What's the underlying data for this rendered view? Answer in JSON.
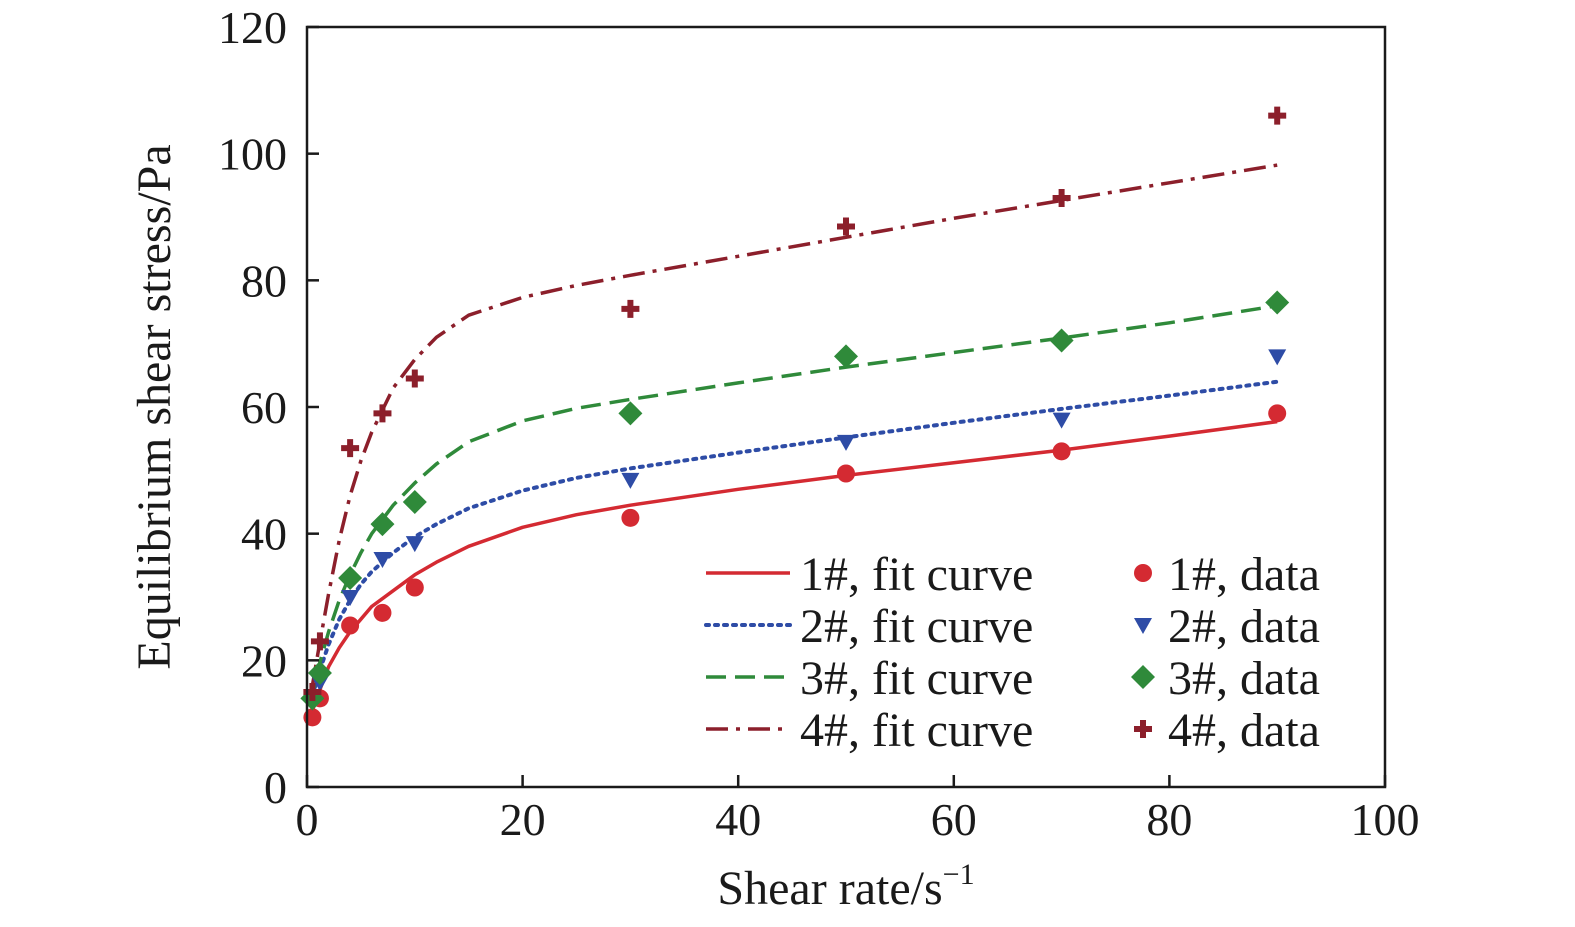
{
  "chart_data": {
    "type": "scatter",
    "xlabel": "Shear rate/s",
    "xlabel_superscript": "−1",
    "ylabel": "Equilibrium shear stress/Pa",
    "xlim": [
      0,
      100
    ],
    "ylim": [
      0,
      120
    ],
    "xticks": [
      0,
      20,
      40,
      60,
      80,
      100
    ],
    "yticks": [
      0,
      20,
      40,
      60,
      80,
      100,
      120
    ],
    "grid": false,
    "legend_position": "bottom-right",
    "data_x": [
      0.5,
      1.2,
      4,
      7,
      10,
      30,
      50,
      70,
      90
    ],
    "series": [
      {
        "id": "s1",
        "fit_label": "1#, fit curve",
        "data_label": "1#, data",
        "color": "#d42a32",
        "line_style": "solid",
        "marker": "circle",
        "values": [
          11,
          14,
          25.5,
          27.5,
          31.5,
          42.5,
          49.5,
          53,
          59
        ],
        "fit_x": [
          0.3,
          1,
          2,
          3,
          4,
          5,
          6,
          8,
          10,
          12,
          15,
          20,
          25,
          30,
          40,
          50,
          60,
          70,
          80,
          90
        ],
        "fit_y": [
          11,
          14.5,
          19,
          22,
          24.5,
          26.5,
          28.5,
          31,
          33.5,
          35.5,
          38,
          41,
          43,
          44.5,
          47,
          49.2,
          51.2,
          53.2,
          55.4,
          57.7
        ]
      },
      {
        "id": "s2",
        "fit_label": "2#, fit curve",
        "data_label": "2#, data",
        "color": "#2e4ca6",
        "line_style": "dotted",
        "marker": "triangle-down",
        "values": [
          13.5,
          16.5,
          30,
          36,
          38.5,
          48.5,
          54.5,
          58,
          68
        ],
        "fit_x": [
          0.3,
          1,
          2,
          3,
          4,
          5,
          6,
          8,
          10,
          12,
          15,
          20,
          25,
          30,
          40,
          50,
          60,
          70,
          80,
          90
        ],
        "fit_y": [
          13,
          17.5,
          22.5,
          26.5,
          29.5,
          32,
          34,
          37,
          39.5,
          41.5,
          44,
          46.8,
          48.8,
          50.3,
          52.8,
          55.2,
          57.5,
          59.7,
          61.8,
          64
        ]
      },
      {
        "id": "s3",
        "fit_label": "3#, fit curve",
        "data_label": "3#, data",
        "color": "#2f8a3a",
        "line_style": "dashed",
        "marker": "diamond",
        "values": [
          14,
          18,
          33,
          41.5,
          45,
          59,
          68,
          70.5,
          76.5
        ],
        "fit_x": [
          0.3,
          1,
          2,
          3,
          4,
          5,
          6,
          8,
          10,
          12,
          15,
          20,
          25,
          30,
          40,
          50,
          60,
          70,
          80,
          90
        ],
        "fit_y": [
          13,
          18.5,
          24.5,
          29.5,
          33.5,
          37,
          40,
          44.5,
          48,
          51,
          54.5,
          57.8,
          59.8,
          61.2,
          63.8,
          66.3,
          68.6,
          70.9,
          73.3,
          76
        ]
      },
      {
        "id": "s4",
        "fit_label": "4#, fit curve",
        "data_label": "4#, data",
        "color": "#8c1f2b",
        "line_style": "dashdot",
        "marker": "plus",
        "values": [
          15,
          23,
          53.5,
          59,
          64.5,
          75.5,
          88.5,
          93,
          106
        ],
        "fit_x": [
          0.3,
          1,
          2,
          3,
          4,
          5,
          6,
          8,
          10,
          12,
          15,
          20,
          25,
          30,
          40,
          50,
          60,
          70,
          80,
          90
        ],
        "fit_y": [
          14,
          21,
          30.5,
          39,
          46,
          51.5,
          56,
          63,
          67.5,
          71,
          74.5,
          77.3,
          79.2,
          80.8,
          83.8,
          86.8,
          89.8,
          92.6,
          95.4,
          98.2
        ]
      }
    ]
  }
}
